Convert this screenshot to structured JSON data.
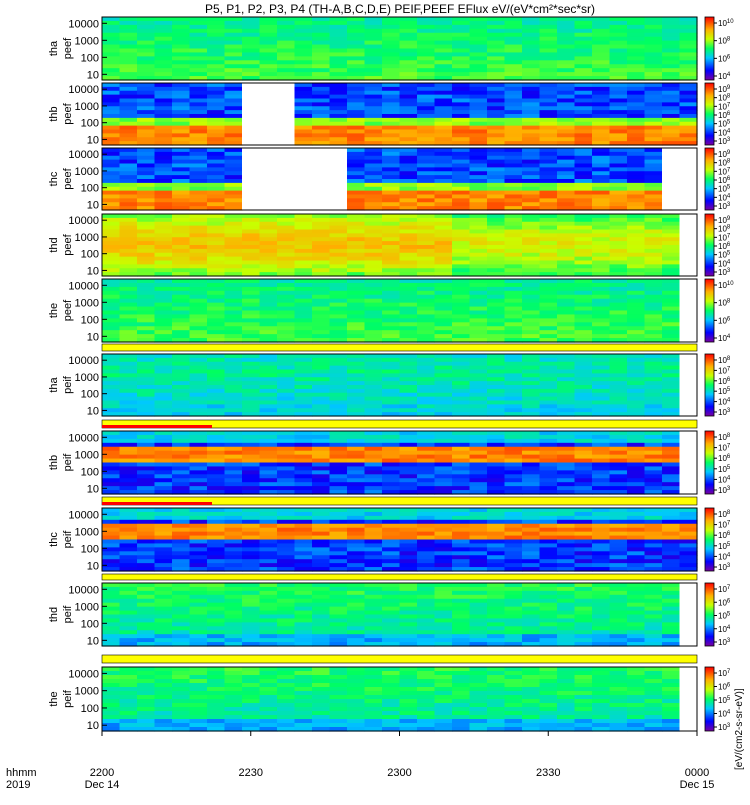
{
  "title": "P5, P1, P2, P3, P4 (TH-A,B,C,D,E) PEIF,PEEF EFlux eV/(eV*cm²*sec*sr)",
  "xaxis": {
    "row_label_top": "hhmm",
    "row_label_bottom": "2019",
    "ticks": [
      "2200",
      "2230",
      "2300",
      "2330",
      "0000"
    ],
    "tick_dates": [
      "Dec 14",
      "",
      "",
      "",
      "Dec 15"
    ]
  },
  "colorbar_label": "eV/(cm²-sec-sr-eV)",
  "colorbar_label_left": "[eV/(cm2-s-sr-eV)]",
  "chart_data": {
    "type": "heatmap",
    "x_range": [
      "2019-12-14 22:00",
      "2019-12-15 00:00"
    ],
    "y_scale": "log",
    "panels": [
      {
        "label": "tha peef",
        "y_ticks": [
          "10000",
          "1000",
          "100",
          "10"
        ],
        "cbar_exp": [
          10,
          8,
          6,
          4
        ],
        "pattern": "green"
      },
      {
        "label": "thb peef",
        "y_ticks": [
          "10000",
          "1000",
          "100",
          "10"
        ],
        "cbar_exp": [
          9,
          8,
          7,
          6,
          5,
          4,
          3
        ],
        "pattern": "blue-red",
        "gaps": [
          [
            0.24,
            0.33
          ]
        ]
      },
      {
        "label": "thc peef",
        "y_ticks": [
          "10000",
          "1000",
          "100",
          "10"
        ],
        "cbar_exp": [
          9,
          8,
          7,
          6,
          5,
          4,
          3
        ],
        "pattern": "blue-red",
        "gaps": [
          [
            0.24,
            0.42
          ],
          [
            0.93,
            1.0
          ]
        ]
      },
      {
        "label": "thd peef",
        "y_ticks": [
          "10000",
          "1000",
          "100",
          "10"
        ],
        "cbar_exp": [
          9,
          8,
          7,
          6,
          5,
          4,
          3
        ],
        "pattern": "green-yellow",
        "gaps": [
          [
            0.96,
            1.0
          ]
        ]
      },
      {
        "label": "the peef",
        "y_ticks": [
          "10000",
          "1000",
          "100",
          "10"
        ],
        "cbar_exp": [
          10,
          8,
          6,
          4
        ],
        "pattern": "green",
        "gaps": [
          [
            0.98,
            1.0
          ]
        ]
      },
      {
        "label": "tha peif",
        "y_ticks": [
          "10000",
          "1000",
          "100",
          "10"
        ],
        "cbar_exp": [
          8,
          7,
          6,
          5,
          4,
          3
        ],
        "pattern": "cyan",
        "gaps": [
          [
            0.98,
            1.0
          ]
        ]
      },
      {
        "label": "thb peif",
        "y_ticks": [
          "10000",
          "1000",
          "100",
          "10"
        ],
        "cbar_exp": [
          8,
          7,
          6,
          5,
          4,
          3
        ],
        "pattern": "band",
        "gaps": [
          [
            0.96,
            1.0
          ]
        ]
      },
      {
        "label": "thc peif",
        "y_ticks": [
          "10000",
          "1000",
          "100",
          "10"
        ],
        "cbar_exp": [
          8,
          7,
          6,
          5,
          4,
          3
        ],
        "pattern": "band"
      },
      {
        "label": "thd peif",
        "y_ticks": [
          "10000",
          "1000",
          "100",
          "10"
        ],
        "cbar_exp": [
          7,
          6,
          5,
          4,
          3
        ],
        "pattern": "green-lo",
        "gaps": [
          [
            0.96,
            1.0
          ]
        ]
      },
      {
        "label": "the peif",
        "y_ticks": [
          "10000",
          "1000",
          "100",
          "10"
        ],
        "cbar_exp": [
          7,
          6,
          5,
          4,
          3
        ],
        "pattern": "green-lo",
        "gaps": [
          [
            0.98,
            1.0
          ]
        ]
      }
    ]
  }
}
